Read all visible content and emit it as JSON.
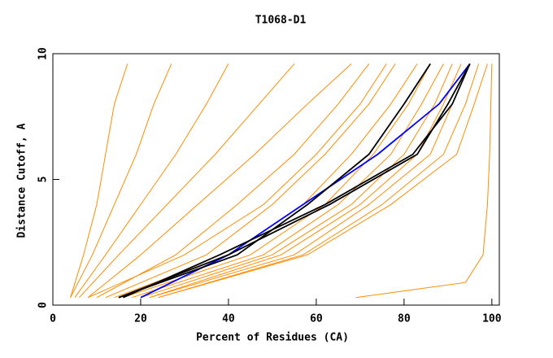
{
  "chart_data": {
    "type": "line",
    "title": "T1068-D1",
    "x_label": "Percent of Residues (CA)",
    "y_label": "Distance Cutoff, A",
    "xlim": [
      0,
      101.7
    ],
    "ylim": [
      0,
      10
    ],
    "xticks": [
      0,
      20,
      40,
      60,
      80,
      100
    ],
    "yticks": [
      0,
      5,
      10
    ],
    "series": [
      {
        "color": "#ff8c00",
        "x": [
          4,
          7,
          10,
          12,
          14,
          17
        ],
        "values": [
          0.3,
          2,
          4,
          6,
          8,
          9.6
        ]
      },
      {
        "color": "#ff8c00",
        "x": [
          4,
          9,
          14,
          19,
          23,
          27
        ],
        "values": [
          0.3,
          2,
          4,
          6,
          8,
          9.6
        ]
      },
      {
        "color": "#ff8c00",
        "x": [
          5,
          12,
          20,
          28,
          35,
          40
        ],
        "values": [
          0.3,
          2,
          4,
          6,
          8,
          9.6
        ]
      },
      {
        "color": "#ff8c00",
        "x": [
          6,
          15,
          26,
          37,
          47,
          55
        ],
        "values": [
          0.3,
          2,
          4,
          6,
          8,
          9.6
        ]
      },
      {
        "color": "#ff8c00",
        "x": [
          8,
          20,
          33,
          46,
          58,
          68
        ],
        "values": [
          0.3,
          2,
          4,
          6,
          8,
          9.6
        ]
      },
      {
        "color": "#ff8c00",
        "x": [
          8,
          30,
          48,
          60,
          70,
          76
        ],
        "values": [
          0.3,
          2,
          4,
          6,
          8,
          9.6
        ]
      },
      {
        "color": "#ff8c00",
        "x": [
          10,
          28,
          42,
          55,
          65,
          72
        ],
        "values": [
          0.3,
          2,
          4,
          6,
          8,
          9.6
        ]
      },
      {
        "color": "#ff8c00",
        "x": [
          12,
          35,
          50,
          62,
          72,
          78
        ],
        "values": [
          0.3,
          2,
          4,
          6,
          8,
          9.6
        ]
      },
      {
        "color": "#ff8c00",
        "x": [
          14,
          40,
          57,
          68,
          77,
          83
        ],
        "values": [
          0.3,
          2,
          4,
          6,
          8,
          9.6
        ]
      },
      {
        "color": "#ff8c00",
        "x": [
          16,
          45,
          62,
          73,
          81,
          86
        ],
        "values": [
          0.3,
          2,
          4,
          6,
          8,
          9.6
        ]
      },
      {
        "color": "#ff8c00",
        "x": [
          18,
          48,
          65,
          77,
          84,
          89
        ],
        "values": [
          0.3,
          2,
          4,
          6,
          8,
          9.6
        ]
      },
      {
        "color": "#ff8c00",
        "x": [
          20,
          50,
          68,
          80,
          87,
          91
        ],
        "values": [
          0.3,
          2,
          4,
          6,
          8,
          9.6
        ]
      },
      {
        "color": "#ff8c00",
        "x": [
          22,
          52,
          70,
          83,
          89,
          93
        ],
        "values": [
          0.3,
          2,
          4,
          6,
          8,
          9.6
        ]
      },
      {
        "color": "#ff8c00",
        "x": [
          22,
          55,
          72,
          86,
          91,
          95
        ],
        "values": [
          0.3,
          2,
          4,
          6,
          8,
          9.6
        ]
      },
      {
        "color": "#ff8c00",
        "x": [
          24,
          57,
          75,
          89,
          94,
          97
        ],
        "values": [
          0.3,
          2,
          4,
          6,
          8,
          9.6
        ]
      },
      {
        "color": "#ff8c00",
        "x": [
          24,
          58,
          77,
          92,
          96,
          99
        ],
        "values": [
          0.3,
          2,
          4,
          6,
          8,
          9.6
        ]
      },
      {
        "color": "#ff8c00",
        "x": [
          69,
          94,
          98,
          99,
          99.5,
          100
        ],
        "values": [
          0.3,
          0.9,
          2,
          4,
          6,
          9.6
        ]
      },
      {
        "color": "#0000ff",
        "x": [
          20,
          40,
          57,
          74,
          88,
          95
        ],
        "values": [
          0.3,
          2,
          4,
          6,
          8,
          9.6
        ]
      },
      {
        "color": "#000000",
        "x": [
          15,
          42,
          58,
          72,
          80,
          86
        ],
        "values": [
          0.3,
          2,
          4,
          6,
          8,
          9.6
        ]
      },
      {
        "color": "#000000",
        "x": [
          15,
          40,
          63,
          83,
          90,
          95
        ],
        "values": [
          0.3,
          2,
          4,
          6,
          8,
          9.6
        ]
      },
      {
        "color": "#000000",
        "x": [
          16,
          38,
          62,
          82,
          91,
          95
        ],
        "values": [
          0.3,
          2,
          4,
          6,
          8,
          9.6
        ]
      }
    ]
  }
}
